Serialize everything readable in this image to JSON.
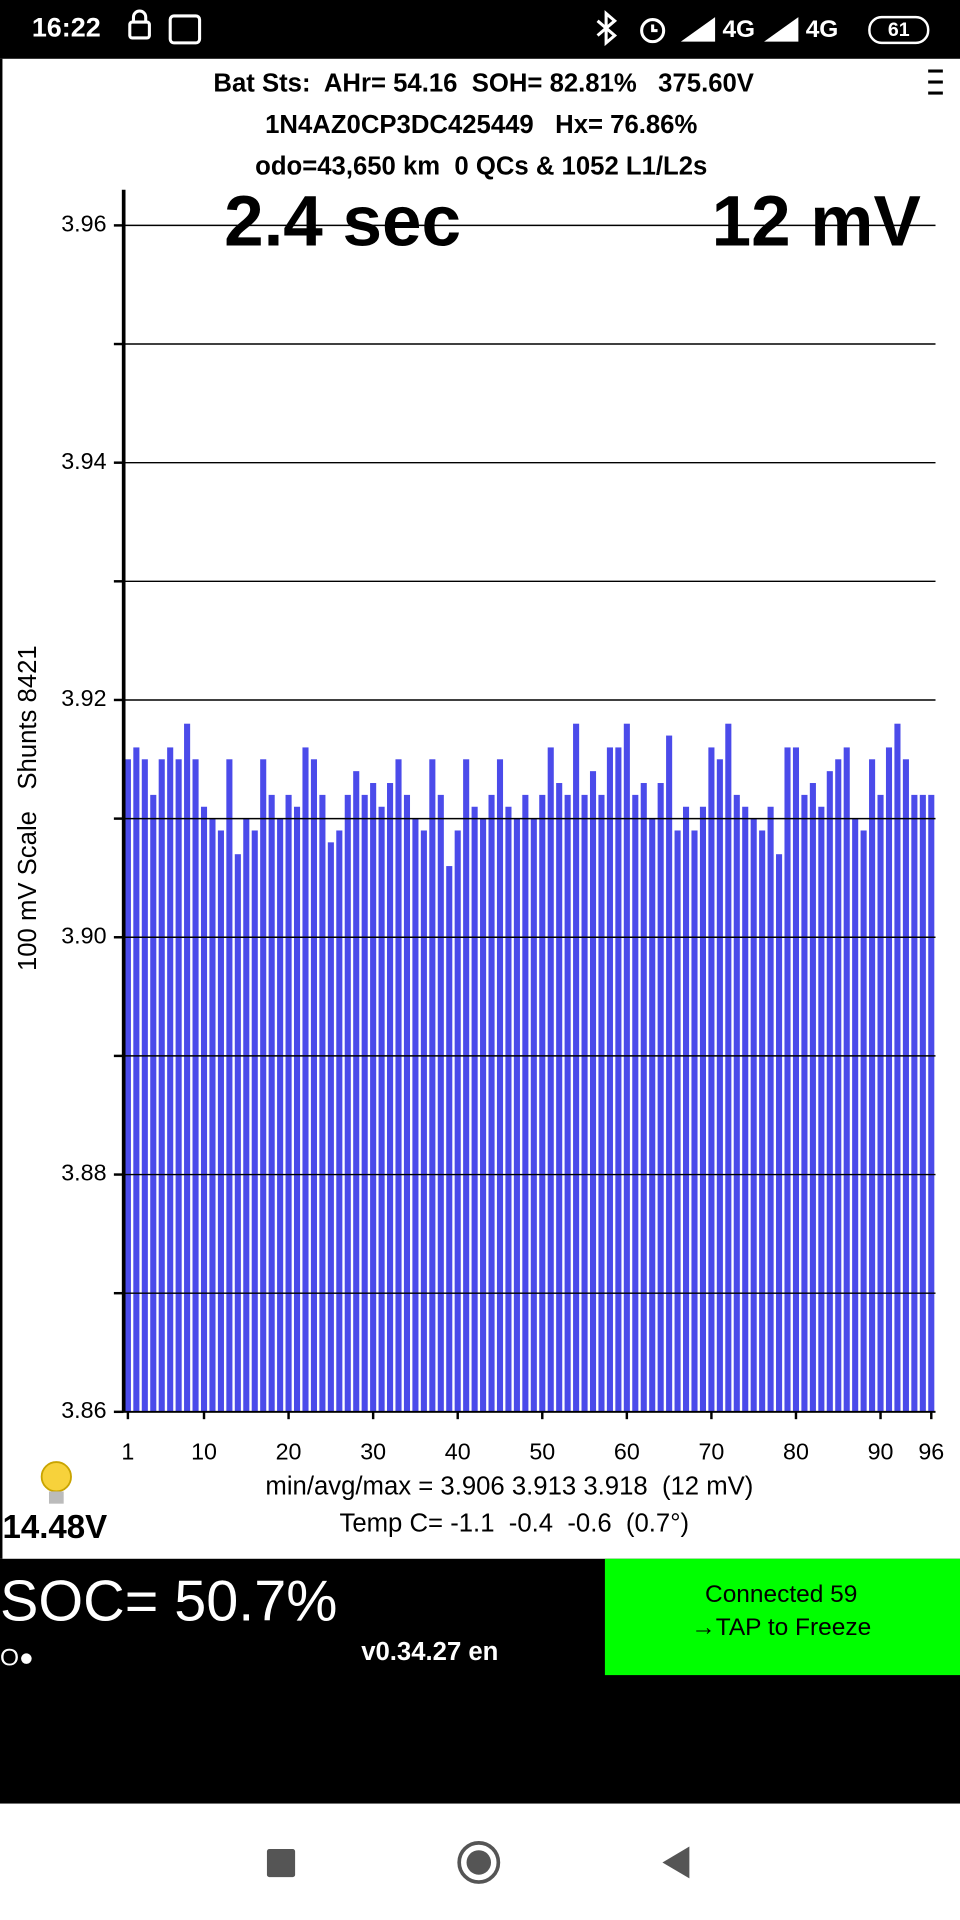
{
  "status_bar": {
    "time": "16:22",
    "network_1": "4G",
    "network_2": "4G",
    "battery": "61"
  },
  "header": {
    "line_1": "Bat Sts:  AHr= 54.16  SOH= 82.81%   375.60V",
    "line_2": "1N4AZ0CP3DC425449   Hx= 76.86%",
    "line_3": "odo=43,650 km  0 QCs & 1052 L1/L2s"
  },
  "chart_data": {
    "type": "bar",
    "y_label": "100 mV Scale   Shunts 8421",
    "overlay_left": "2.4 sec",
    "overlay_right": "12 mV",
    "color": "#4b4bea",
    "x": [
      1,
      2,
      3,
      4,
      5,
      6,
      7,
      8,
      9,
      10,
      11,
      12,
      13,
      14,
      15,
      16,
      17,
      18,
      19,
      20,
      21,
      22,
      23,
      24,
      25,
      26,
      27,
      28,
      29,
      30,
      31,
      32,
      33,
      34,
      35,
      36,
      37,
      38,
      39,
      40,
      41,
      42,
      43,
      44,
      45,
      46,
      47,
      48,
      49,
      50,
      51,
      52,
      53,
      54,
      55,
      56,
      57,
      58,
      59,
      60,
      61,
      62,
      63,
      64,
      65,
      66,
      67,
      68,
      69,
      70,
      71,
      72,
      73,
      74,
      75,
      76,
      77,
      78,
      79,
      80,
      81,
      82,
      83,
      84,
      85,
      86,
      87,
      88,
      89,
      90,
      91,
      92,
      93,
      94,
      95,
      96
    ],
    "values": [
      3.915,
      3.916,
      3.915,
      3.912,
      3.915,
      3.916,
      3.915,
      3.918,
      3.915,
      3.911,
      3.91,
      3.909,
      3.915,
      3.907,
      3.91,
      3.909,
      3.915,
      3.912,
      3.91,
      3.912,
      3.911,
      3.916,
      3.915,
      3.912,
      3.908,
      3.909,
      3.912,
      3.914,
      3.912,
      3.913,
      3.911,
      3.913,
      3.915,
      3.912,
      3.91,
      3.909,
      3.915,
      3.912,
      3.906,
      3.909,
      3.915,
      3.911,
      3.91,
      3.912,
      3.915,
      3.911,
      3.91,
      3.912,
      3.91,
      3.912,
      3.916,
      3.913,
      3.912,
      3.918,
      3.912,
      3.914,
      3.912,
      3.916,
      3.916,
      3.918,
      3.912,
      3.913,
      3.91,
      3.913,
      3.917,
      3.909,
      3.911,
      3.909,
      3.911,
      3.916,
      3.915,
      3.918,
      3.912,
      3.911,
      3.91,
      3.909,
      3.911,
      3.907,
      3.916,
      3.916,
      3.912,
      3.913,
      3.911,
      3.914,
      3.915,
      3.916,
      3.91,
      3.909,
      3.915,
      3.912,
      3.916,
      3.918,
      3.915,
      3.912,
      3.912,
      3.912
    ],
    "xlim": [
      0.5,
      96.5
    ],
    "xticks": [
      1,
      10,
      20,
      30,
      40,
      50,
      60,
      70,
      80,
      90,
      96
    ],
    "ylim": [
      3.86,
      3.963
    ],
    "yticks": [
      3.86,
      3.88,
      {
        "value": 3.9,
        "label": "3.90"
      },
      3.92,
      3.94,
      3.96
    ],
    "yminorticks": [
      3.87,
      3.89,
      3.91,
      3.93,
      3.95
    ],
    "grid": true
  },
  "footer": {
    "stats": "min/avg/max = 3.906 3.913 3.918  (12 mV)",
    "temps": "Temp C= -1.1  -0.4  -0.6  (0.7°)",
    "aux_voltage": "14.48V",
    "soc": "SOC= 50.7%",
    "indicator": "O●",
    "version": "v0.34.27 en",
    "button": {
      "line_1": "Connected 59",
      "line_2": "→TAP to Freeze"
    }
  }
}
